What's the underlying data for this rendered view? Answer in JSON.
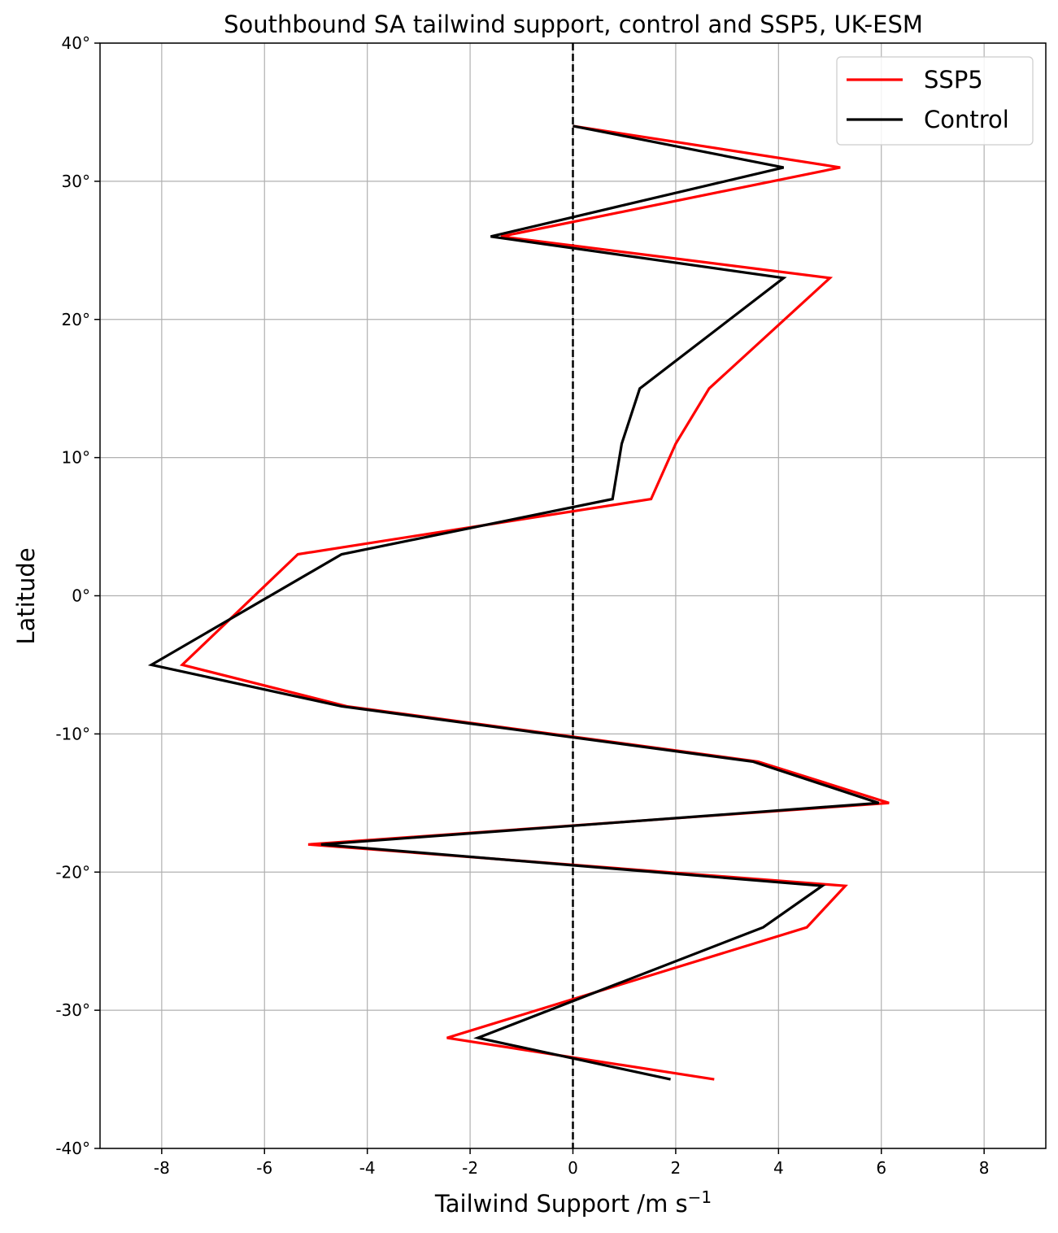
{
  "chart_data": {
    "type": "line",
    "title": "Southbound SA tailwind support, control and SSP5, UK-ESM",
    "xlabel": "Tailwind Support /m s",
    "xlabel_superscript": "−1",
    "ylabel": "Latitude",
    "xlim": [
      -9.2,
      9.2
    ],
    "ylim": [
      -40,
      40
    ],
    "x_ticks": [
      -8,
      -6,
      -4,
      -2,
      0,
      2,
      4,
      6,
      8
    ],
    "x_tick_labels": [
      "-8",
      "-6",
      "-4",
      "-2",
      "0",
      "2",
      "4",
      "6",
      "8"
    ],
    "y_ticks": [
      40,
      30,
      20,
      10,
      0,
      -10,
      -20,
      -30,
      -40
    ],
    "y_tick_labels": [
      "40°",
      "30°",
      "20°",
      "10°",
      "0°",
      "-10°",
      "-20°",
      "-30°",
      "-40°"
    ],
    "grid": true,
    "legend_position": "top-right",
    "reference_line": {
      "x": 0,
      "style": "dashed",
      "color": "#000000"
    },
    "series": [
      {
        "name": "SSP5",
        "color": "#ff0000",
        "points": [
          [
            0.0,
            34
          ],
          [
            5.2,
            31
          ],
          [
            -1.4,
            26
          ],
          [
            5.0,
            23
          ],
          [
            2.65,
            15
          ],
          [
            2.0,
            11
          ],
          [
            1.52,
            7
          ],
          [
            -5.35,
            3
          ],
          [
            -7.6,
            -5
          ],
          [
            -4.4,
            -8
          ],
          [
            3.6,
            -12
          ],
          [
            6.15,
            -15
          ],
          [
            -5.15,
            -18
          ],
          [
            5.3,
            -21
          ],
          [
            4.55,
            -24
          ],
          [
            -2.45,
            -32
          ],
          [
            2.75,
            -35
          ]
        ]
      },
      {
        "name": "Control",
        "color": "#000000",
        "points": [
          [
            0.0,
            34
          ],
          [
            4.1,
            31
          ],
          [
            -1.6,
            26
          ],
          [
            4.1,
            23
          ],
          [
            1.3,
            15
          ],
          [
            0.95,
            11
          ],
          [
            0.77,
            7
          ],
          [
            -4.5,
            3
          ],
          [
            -8.2,
            -5
          ],
          [
            -4.5,
            -8
          ],
          [
            3.5,
            -12
          ],
          [
            5.95,
            -15
          ],
          [
            -4.9,
            -18
          ],
          [
            4.85,
            -21
          ],
          [
            3.7,
            -24
          ],
          [
            -1.85,
            -32
          ],
          [
            1.9,
            -35
          ]
        ]
      }
    ]
  }
}
